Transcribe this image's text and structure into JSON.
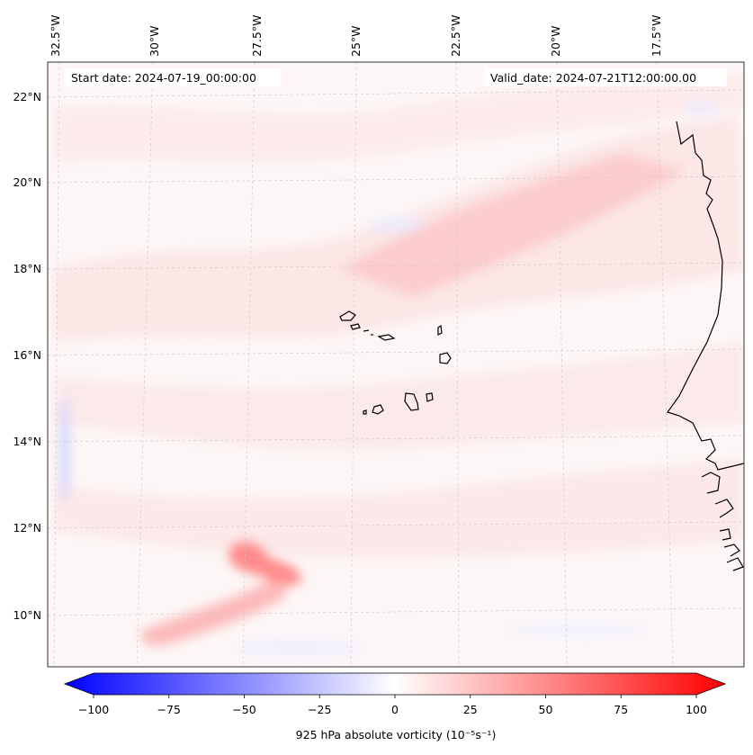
{
  "map": {
    "start_date": "Start date: 2024-07-19_00:00:00",
    "valid_date": "Valid_date: 2024-07-21T12:00:00.00",
    "lon_labels": [
      "32.5°W",
      "30°W",
      "27.5°W",
      "25°W",
      "22.5°W",
      "20°W",
      "17.5°W"
    ],
    "lat_labels": [
      "22°N",
      "20°N",
      "18°N",
      "16°N",
      "14°N",
      "12°N",
      "10°N"
    ]
  },
  "colorbar": {
    "label": "925 hPa absolute vorticity (10⁻⁵s⁻¹)",
    "ticks": [
      "−100",
      "−75",
      "−50",
      "−25",
      "0",
      "25",
      "50",
      "75",
      "100"
    ],
    "min": -100,
    "max": 100,
    "colors": {
      "negative": "#0000ff",
      "zero": "#ffffff",
      "positive": "#ff0000"
    }
  },
  "colors": {
    "coastline": "#000000",
    "grid": "#c8c8c8",
    "background_field": "#fdf6f6"
  }
}
